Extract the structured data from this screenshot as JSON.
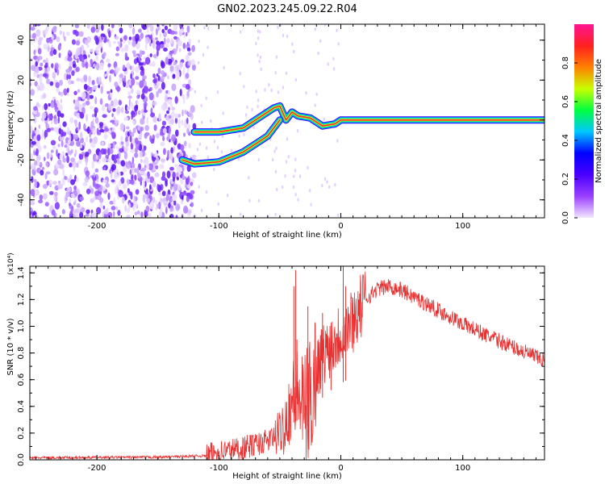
{
  "page": {
    "title": "GN02.2023.245.09.22.R04"
  },
  "chart_data": [
    {
      "type": "heatmap",
      "xlabel": "Height of straight line (km)",
      "ylabel": "Frequency (Hz)",
      "xlim": [
        -255,
        167
      ],
      "ylim": [
        -49,
        48
      ],
      "xticks": [
        -200,
        -100,
        0,
        100
      ],
      "yticks": [
        -40,
        -20,
        0,
        20,
        40
      ],
      "grid": false,
      "colorbar": {
        "label": "Normalized spectral amplitude",
        "range": [
          0,
          1
        ],
        "ticks": [
          "0.0",
          "0.2",
          "0.4",
          "0.6",
          "0.8"
        ],
        "colors": [
          "#f2e6ff",
          "#9a40ff",
          "#4a00ff",
          "#0000ff",
          "#00c8ff",
          "#00ff40",
          "#c8ff00",
          "#ff8000",
          "#ff2020",
          "#ff1493"
        ]
      },
      "signal_trace": {
        "upper_branch": [
          [
            -120,
            -6
          ],
          [
            -100,
            -6
          ],
          [
            -80,
            -4
          ],
          [
            -65,
            2
          ],
          [
            -55,
            6
          ],
          [
            -50,
            7
          ],
          [
            -45,
            0
          ],
          [
            -40,
            4
          ],
          [
            -35,
            2
          ],
          [
            -25,
            1
          ],
          [
            -15,
            -3
          ],
          [
            -5,
            -2
          ],
          [
            0,
            0
          ],
          [
            167,
            0
          ]
        ],
        "lower_branch": [
          [
            -130,
            -20
          ],
          [
            -120,
            -22
          ],
          [
            -100,
            -21
          ],
          [
            -80,
            -16
          ],
          [
            -60,
            -8
          ],
          [
            -50,
            0
          ]
        ]
      }
    },
    {
      "type": "line",
      "xlabel": "Height of straight line (km)",
      "ylabel": "SNR (10 * v/v)",
      "y_multiplier": "(x10⁴)",
      "xlim": [
        -255,
        167
      ],
      "ylim": [
        0,
        1.45
      ],
      "xticks": [
        -200,
        -100,
        0,
        100
      ],
      "yticks": [
        "0.0",
        "0.2",
        "0.4",
        "0.6",
        "0.8",
        "1.0",
        "1.2",
        "1.4"
      ],
      "grid": false,
      "color": "#e83030",
      "envelope": [
        [
          -255,
          0.015
        ],
        [
          -150,
          0.02
        ],
        [
          -110,
          0.03
        ],
        [
          -100,
          0.06
        ],
        [
          -80,
          0.09
        ],
        [
          -60,
          0.14
        ],
        [
          -50,
          0.2
        ],
        [
          -45,
          0.3
        ],
        [
          -40,
          0.45
        ],
        [
          -35,
          0.5
        ],
        [
          -30,
          0.35
        ],
        [
          -25,
          0.45
        ],
        [
          -20,
          0.7
        ],
        [
          -10,
          0.85
        ],
        [
          0,
          0.95
        ],
        [
          10,
          1.05
        ],
        [
          20,
          1.2
        ],
        [
          30,
          1.28
        ],
        [
          40,
          1.3
        ],
        [
          50,
          1.27
        ],
        [
          60,
          1.22
        ],
        [
          80,
          1.12
        ],
        [
          100,
          1.02
        ],
        [
          120,
          0.93
        ],
        [
          140,
          0.85
        ],
        [
          167,
          0.74
        ]
      ],
      "spikes": [
        [
          -37,
          1.42
        ],
        [
          -38.5,
          1.3
        ],
        [
          -36,
          0.9
        ],
        [
          -27,
          1.15
        ],
        [
          -15,
          1.1
        ],
        [
          2,
          1.45
        ],
        [
          4,
          1.3
        ],
        [
          -8,
          1.0
        ]
      ]
    }
  ]
}
